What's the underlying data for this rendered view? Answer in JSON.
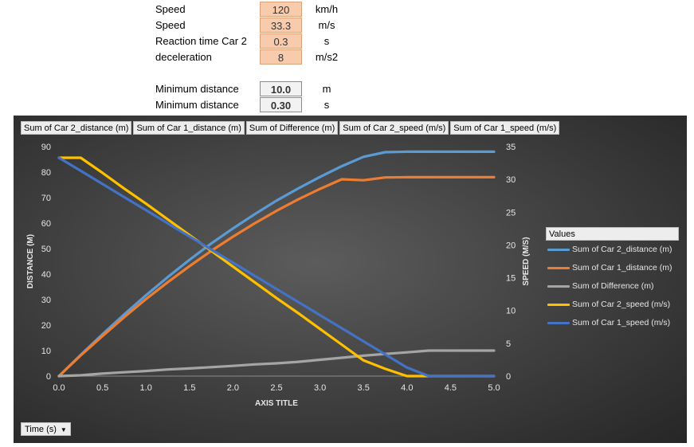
{
  "params": [
    {
      "label": "Speed",
      "value": "120",
      "unit": "km/h",
      "kind": "input"
    },
    {
      "label": "Speed",
      "value": "33.3",
      "unit": "m/s",
      "kind": "input"
    },
    {
      "label": "Reaction time Car 2",
      "value": "0.3",
      "unit": "s",
      "kind": "input"
    },
    {
      "label": "deceleration",
      "value": "8",
      "unit": "m/s2",
      "kind": "input"
    },
    {
      "label": "Minimum distance",
      "value": "10.0",
      "unit": "m",
      "kind": "result"
    },
    {
      "label": "Minimum distance",
      "value": "0.30",
      "unit": "s",
      "kind": "result"
    }
  ],
  "field_buttons": [
    "Sum of Car 2_distance (m)",
    "Sum of Car 1_distance (m)",
    "Sum of Difference (m)",
    "Sum of Car 2_speed (m/s)",
    "Sum of Car 1_speed (m/s)"
  ],
  "axis_field_button": "Time  (s)",
  "legend_title": "Values",
  "chart_data": {
    "type": "line",
    "xlabel": "AXIS TITLE",
    "ylabel": "DISTANCE (M)",
    "y2label": "SPEED (M/S)",
    "xlim": [
      0,
      5
    ],
    "ylim": [
      0,
      90
    ],
    "y2lim": [
      0,
      35
    ],
    "x_ticks": [
      "0.0",
      "0.5",
      "1.0",
      "1.5",
      "2.0",
      "2.5",
      "3.0",
      "3.5",
      "4.0",
      "4.5",
      "5.0"
    ],
    "y_ticks": [
      "0",
      "10",
      "20",
      "30",
      "40",
      "50",
      "60",
      "70",
      "80",
      "90"
    ],
    "y2_ticks": [
      "0",
      "5",
      "10",
      "15",
      "20",
      "25",
      "30",
      "35"
    ],
    "grid": false,
    "legend_position": "right",
    "x": [
      0.0,
      0.25,
      0.5,
      0.75,
      1.0,
      1.25,
      1.5,
      1.75,
      2.0,
      2.25,
      2.5,
      2.75,
      3.0,
      3.25,
      3.5,
      3.75,
      4.0,
      4.25,
      4.5,
      4.75,
      5.0
    ],
    "series": [
      {
        "name": "Sum of Car 2_distance (m)",
        "axis": "left",
        "color": "#5b9bd5",
        "values": [
          0.0,
          8.3,
          16.4,
          24.2,
          31.7,
          38.8,
          45.6,
          52.0,
          57.9,
          63.5,
          68.8,
          73.6,
          78.1,
          82.3,
          86.0,
          87.8,
          88.0,
          88.0,
          88.0,
          88.0,
          88.0
        ]
      },
      {
        "name": "Sum of Car 1_distance (m)",
        "axis": "left",
        "color": "#ed7d31",
        "values": [
          0.0,
          8.1,
          15.7,
          23.1,
          30.2,
          36.8,
          43.1,
          49.1,
          54.7,
          59.9,
          64.8,
          69.3,
          73.4,
          77.2,
          76.8,
          77.9,
          78.0,
          78.0,
          78.0,
          78.0,
          78.0
        ]
      },
      {
        "name": "Sum of Difference (m)",
        "axis": "left",
        "color": "#a5a5a5",
        "values": [
          0.0,
          0.3,
          1.0,
          1.5,
          2.0,
          2.6,
          3.0,
          3.5,
          4.0,
          4.6,
          5.0,
          5.6,
          6.4,
          7.2,
          8.0,
          8.7,
          9.3,
          10.0,
          10.0,
          10.0,
          10.0
        ]
      },
      {
        "name": "Sum of Car 2_speed (m/s)",
        "axis": "right",
        "color": "#ffc000",
        "values": [
          33.3,
          33.3,
          31.0,
          28.6,
          26.3,
          23.9,
          21.5,
          19.1,
          16.7,
          14.3,
          11.9,
          9.6,
          7.2,
          4.8,
          2.4,
          1.1,
          0.0,
          0.0,
          0.0,
          0.0,
          0.0
        ]
      },
      {
        "name": "Sum of Car 1_speed (m/s)",
        "axis": "right",
        "color": "#4472c4",
        "values": [
          33.3,
          31.3,
          29.3,
          27.3,
          25.3,
          23.3,
          21.3,
          19.3,
          17.3,
          15.3,
          13.3,
          11.3,
          9.3,
          7.3,
          5.3,
          3.3,
          1.3,
          0.0,
          0.0,
          0.0,
          0.0
        ]
      }
    ]
  }
}
